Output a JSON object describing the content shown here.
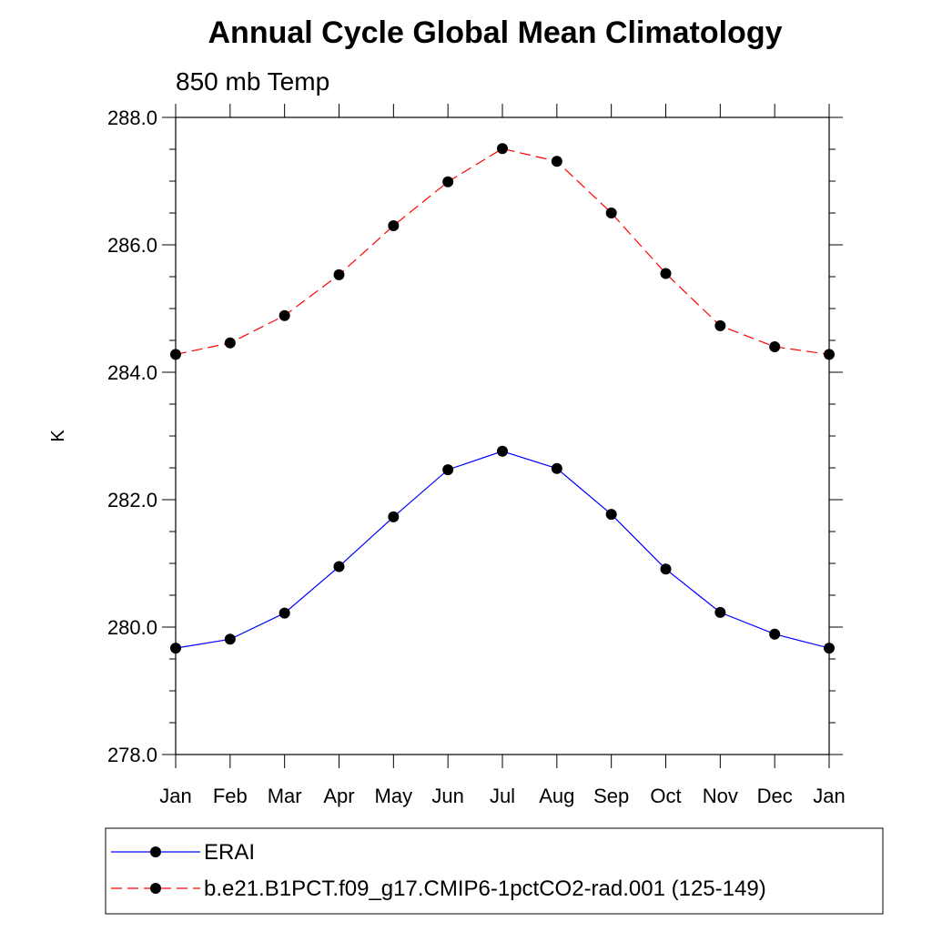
{
  "chart_data": {
    "type": "line",
    "title": "Annual Cycle Global Mean Climatology",
    "subtitle": "850 mb Temp",
    "xlabel": "",
    "ylabel": "K",
    "categories": [
      "Jan",
      "Feb",
      "Mar",
      "Apr",
      "May",
      "Jun",
      "Jul",
      "Aug",
      "Sep",
      "Oct",
      "Nov",
      "Dec",
      "Jan"
    ],
    "ylim": [
      278.0,
      288.0
    ],
    "yticks": [
      "278.0",
      "280.0",
      "282.0",
      "284.0",
      "286.0",
      "288.0"
    ],
    "ytick_values": [
      278,
      280,
      282,
      284,
      286,
      288
    ],
    "minor_ytick_step": 0.5,
    "grid": false,
    "legend_position": "bottom",
    "series": [
      {
        "name": "ERAI",
        "color": "#0000ff",
        "dash": "solid",
        "marker": "filled-circle",
        "values": [
          279.67,
          279.81,
          280.22,
          280.95,
          281.73,
          282.47,
          282.76,
          282.49,
          281.77,
          280.91,
          280.23,
          279.89,
          279.67
        ]
      },
      {
        "name": "b.e21.B1PCT.f09_g17.CMIP6-1pctCO2-rad.001 (125-149)",
        "color": "#ff0000",
        "dash": "dashed",
        "marker": "filled-circle",
        "values": [
          284.28,
          284.46,
          284.89,
          285.53,
          286.3,
          286.99,
          287.51,
          287.31,
          286.5,
          285.55,
          284.73,
          284.4,
          284.28
        ]
      }
    ]
  }
}
